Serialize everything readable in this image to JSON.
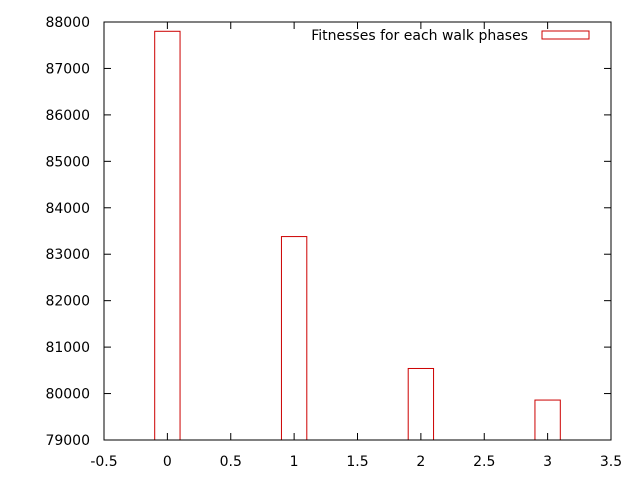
{
  "chart_data": {
    "type": "bar",
    "x": [
      0,
      1,
      2,
      3
    ],
    "series": [
      {
        "name": "Fitnesses for each walk phases",
        "values": [
          87800,
          83380,
          80540,
          79860
        ]
      }
    ],
    "xlim": [
      -0.5,
      3.5
    ],
    "ylim": [
      79000,
      88000
    ],
    "xticks": [
      "-0.5",
      "0",
      "0.5",
      "1",
      "1.5",
      "2",
      "2.5",
      "3",
      "3.5"
    ],
    "yticks": [
      "79000",
      "80000",
      "81000",
      "82000",
      "83000",
      "84000",
      "85000",
      "86000",
      "87000",
      "88000"
    ],
    "bar_width": 0.2,
    "grid": false,
    "legend_position": "top-right",
    "colors": {
      "bar": "#cc0000",
      "axis": "#000000",
      "background": "#ffffff"
    }
  }
}
